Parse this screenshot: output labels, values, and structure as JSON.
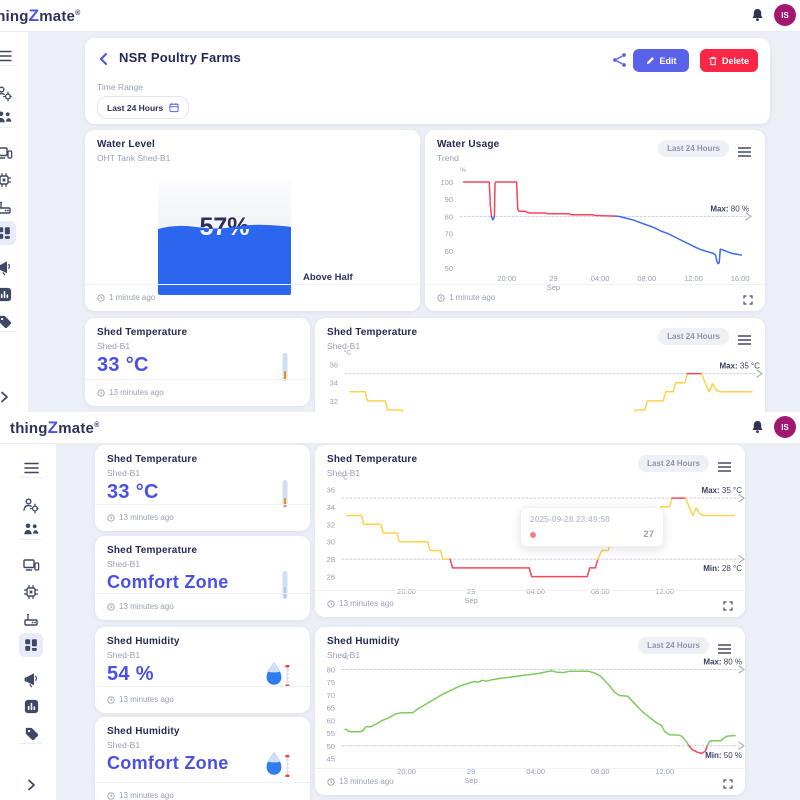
{
  "brand": {
    "prefix": "thing",
    "accent": "Z",
    "suffix": "mate",
    "registered": "®"
  },
  "header": {
    "avatar": "IS",
    "bell_icon": "bell-icon"
  },
  "sidebar": {
    "items": [
      {
        "icon": "menu"
      },
      {
        "icon": "divider"
      },
      {
        "icon": "user-gear"
      },
      {
        "icon": "users"
      },
      {
        "icon": "divider"
      },
      {
        "icon": "devices"
      },
      {
        "icon": "chip"
      },
      {
        "icon": "gateway"
      },
      {
        "icon": "dashboard",
        "active": true
      },
      {
        "icon": "megaphone"
      },
      {
        "icon": "reports"
      },
      {
        "icon": "tags"
      },
      {
        "icon": "divider"
      },
      {
        "icon": "chevron-right",
        "bottom": true
      }
    ]
  },
  "page": {
    "title": "NSR Poultry Farms",
    "edit": "Edit",
    "delete": "Delete",
    "time_range_label": "Time Range",
    "time_range_value": "Last 24 Hours"
  },
  "cards": {
    "water_level": {
      "title": "Water Level",
      "subtitle": "OHT Tank Shed-B1",
      "value": "57%",
      "percent": 57,
      "status": "Above Half",
      "updated": "1 minute ago"
    },
    "water_usage": {
      "title": "Water Usage",
      "subtitle": "Trend",
      "range": "Last 24 Hours",
      "updated": "1 minute ago"
    },
    "temp_value": {
      "title": "Shed Temperature",
      "subtitle": "Shed-B1",
      "value": "33 °C",
      "updated": "13 minutes ago"
    },
    "temp_chart": {
      "title": "Shed Temperature",
      "subtitle": "Shed-B1",
      "range": "Last 24 Hours",
      "updated": "13 minutes ago"
    },
    "temp_status": {
      "title": "Shed Temperature",
      "subtitle": "Shed-B1",
      "value": "Comfort Zone",
      "updated": "13 minutes ago"
    },
    "humidity_value": {
      "title": "Shed Humidity",
      "subtitle": "Shed-B1",
      "value": "54 %",
      "updated": "13 minutes ago"
    },
    "humidity_chart": {
      "title": "Shed Humidity",
      "subtitle": "Shed-B1",
      "range": "Last 24 Hours",
      "updated": "13 minutes ago"
    },
    "humidity_status": {
      "title": "Shed Humidity",
      "subtitle": "Shed-B1",
      "value": "Comfort Zone",
      "updated": "13 minutes ago"
    }
  },
  "tooltip": {
    "timestamp": "2025-09-28 23:49:50",
    "value": "27"
  },
  "chart_data": [
    {
      "type": "line",
      "title": "Water Usage",
      "subtitle": "Trend",
      "range_label": "Last 24 Hours",
      "unit": "%",
      "ylim": [
        50,
        100
      ],
      "xlim": [
        0,
        24.5
      ],
      "yticks": [
        100,
        90,
        80,
        70,
        60,
        50
      ],
      "xticks": [
        {
          "x": 4,
          "label": "20:00"
        },
        {
          "x": 8,
          "label": "29",
          "sub": "Sep"
        },
        {
          "x": 12,
          "label": "04:00"
        },
        {
          "x": 16,
          "label": "08:00"
        },
        {
          "x": 20,
          "label": "12:00"
        },
        {
          "x": 24,
          "label": "16:00"
        }
      ],
      "max_line": {
        "prefix": "Max:",
        "value": 80,
        "text": "80 %"
      },
      "min_line": null,
      "series": [
        {
          "color": "#f6465d",
          "points": [
            [
              0.3,
              100
            ],
            [
              2.5,
              100
            ],
            [
              2.6,
              86
            ],
            [
              2.7,
              80
            ]
          ]
        },
        {
          "color": "#3e6be8",
          "points": [
            [
              2.7,
              80
            ],
            [
              2.8,
              78
            ],
            [
              2.9,
              79
            ],
            [
              2.95,
              80
            ]
          ]
        },
        {
          "color": "#f6465d",
          "points": [
            [
              2.95,
              80
            ],
            [
              3.0,
              99
            ],
            [
              3.05,
              100
            ],
            [
              4.85,
              100
            ],
            [
              4.95,
              84
            ],
            [
              5.05,
              83
            ],
            [
              5.6,
              83
            ],
            [
              5.7,
              82.5
            ],
            [
              6.0,
              82
            ],
            [
              7.4,
              82
            ],
            [
              7.5,
              81.5
            ],
            [
              9.4,
              81.5
            ],
            [
              9.5,
              81
            ],
            [
              11.4,
              81
            ],
            [
              11.5,
              80.6
            ],
            [
              13.3,
              80.2
            ]
          ]
        },
        {
          "color": "#3e6be8",
          "points": [
            [
              13.3,
              80.2
            ],
            [
              13.6,
              80
            ],
            [
              14.2,
              79
            ],
            [
              14.8,
              78
            ],
            [
              15.4,
              76.5
            ],
            [
              16.0,
              75
            ],
            [
              16.6,
              73.5
            ],
            [
              17.2,
              71.5
            ],
            [
              17.8,
              70
            ],
            [
              18.4,
              68
            ],
            [
              19.0,
              66
            ],
            [
              19.6,
              64
            ],
            [
              20.2,
              62
            ],
            [
              20.7,
              60.5
            ],
            [
              21.2,
              59.5
            ],
            [
              21.7,
              58.5
            ],
            [
              21.9,
              57.5
            ],
            [
              22.0,
              54
            ],
            [
              22.1,
              52.5
            ],
            [
              22.2,
              53
            ],
            [
              22.3,
              61
            ],
            [
              22.5,
              60.5
            ],
            [
              22.9,
              59.5
            ],
            [
              23.3,
              58.5
            ],
            [
              23.7,
              58
            ],
            [
              24.1,
              57.5
            ]
          ]
        }
      ]
    },
    {
      "type": "line",
      "title": "Shed Temperature",
      "subtitle": "Shed-B1",
      "range_label": "Last 24 Hours",
      "unit": "°C",
      "ylim": [
        25.5,
        36.5
      ],
      "xlim": [
        0,
        24.6
      ],
      "yticks": [
        36,
        34,
        32,
        30,
        28,
        26
      ],
      "xticks": [
        {
          "x": 4,
          "label": "20:00"
        },
        {
          "x": 8,
          "label": "29",
          "sub": "Sep"
        },
        {
          "x": 12,
          "label": "04:00"
        },
        {
          "x": 16,
          "label": "08:00"
        },
        {
          "x": 20,
          "label": "12:00"
        }
      ],
      "max_line": {
        "prefix": "Max:",
        "value": 35,
        "text": "35 °C"
      },
      "min_line": {
        "prefix": "Min:",
        "value": 28,
        "text": "28 °C"
      },
      "series": [
        {
          "color": "#ffd24d",
          "points": [
            [
              0.3,
              33
            ],
            [
              1.2,
              33
            ],
            [
              1.35,
              32
            ],
            [
              2.4,
              32
            ],
            [
              2.55,
              31
            ],
            [
              3.4,
              31
            ],
            [
              3.55,
              30
            ],
            [
              5.3,
              30
            ],
            [
              5.45,
              29
            ],
            [
              6.1,
              29
            ],
            [
              6.25,
              28
            ],
            [
              6.7,
              28
            ]
          ]
        },
        {
          "color": "#f6465d",
          "points": [
            [
              6.7,
              28
            ],
            [
              6.85,
              27
            ],
            [
              11.6,
              27
            ],
            [
              11.75,
              26
            ],
            [
              15.2,
              26
            ],
            [
              15.35,
              27
            ],
            [
              15.7,
              27
            ],
            [
              15.85,
              28
            ]
          ]
        },
        {
          "color": "#ffd24d",
          "points": [
            [
              15.85,
              28
            ],
            [
              16.1,
              29
            ],
            [
              16.5,
              29
            ],
            [
              16.65,
              30
            ],
            [
              17.2,
              30
            ],
            [
              17.35,
              31
            ],
            [
              17.9,
              31
            ],
            [
              18.05,
              32
            ],
            [
              19.0,
              32
            ],
            [
              19.15,
              33
            ],
            [
              19.6,
              33
            ],
            [
              19.75,
              34
            ],
            [
              20.3,
              34
            ],
            [
              20.45,
              35
            ]
          ]
        },
        {
          "color": "#f6465d",
          "points": [
            [
              20.45,
              35
            ],
            [
              21.3,
              35
            ]
          ]
        },
        {
          "color": "#ffd24d",
          "points": [
            [
              21.3,
              35
            ],
            [
              21.5,
              34
            ],
            [
              21.75,
              33
            ],
            [
              21.95,
              33.9
            ],
            [
              22.15,
              33.2
            ],
            [
              22.4,
              33
            ],
            [
              24.3,
              33
            ]
          ]
        }
      ]
    },
    {
      "type": "line",
      "title": "Shed Humidity",
      "subtitle": "Shed-B1",
      "range_label": "Last 24 Hours",
      "unit": "%",
      "ylim": [
        44,
        81
      ],
      "xlim": [
        0,
        24.6
      ],
      "yticks": [
        80,
        75,
        70,
        65,
        60,
        55,
        50,
        45
      ],
      "xticks": [
        {
          "x": 4,
          "label": "20:00"
        },
        {
          "x": 8,
          "label": "29",
          "sub": "Sep"
        },
        {
          "x": 12,
          "label": "04:00"
        },
        {
          "x": 16,
          "label": "08:00"
        },
        {
          "x": 20,
          "label": "12:00"
        }
      ],
      "max_line": {
        "prefix": "Max:",
        "value": 80,
        "text": "80 %"
      },
      "min_line": {
        "prefix": "Min:",
        "value": 50,
        "text": "50 %"
      },
      "series": [
        {
          "color": "#7ecb5c",
          "points": [
            [
              0.2,
              56.5
            ],
            [
              0.5,
              55.5
            ],
            [
              1.1,
              55.5
            ],
            [
              1.3,
              56
            ],
            [
              1.5,
              57.5
            ],
            [
              1.8,
              57.5
            ],
            [
              2.1,
              58.5
            ],
            [
              2.5,
              60
            ],
            [
              2.9,
              61
            ],
            [
              3.3,
              62.5
            ],
            [
              3.7,
              63
            ],
            [
              4.4,
              63
            ],
            [
              4.7,
              64.5
            ],
            [
              5.1,
              66
            ],
            [
              5.5,
              67.5
            ],
            [
              5.9,
              69
            ],
            [
              6.3,
              70.5
            ],
            [
              6.8,
              72
            ],
            [
              7.3,
              73.5
            ],
            [
              7.8,
              74.5
            ],
            [
              8.2,
              75.3
            ],
            [
              8.45,
              75
            ],
            [
              8.7,
              75.8
            ],
            [
              8.95,
              75.4
            ],
            [
              9.3,
              76
            ],
            [
              9.8,
              76.5
            ],
            [
              10.4,
              77
            ],
            [
              11.0,
              77.5
            ],
            [
              11.6,
              78
            ],
            [
              12.2,
              78.5
            ],
            [
              12.7,
              79.2
            ],
            [
              13.0,
              79.5
            ],
            [
              13.3,
              79
            ],
            [
              13.7,
              78.8
            ],
            [
              14.1,
              79.3
            ],
            [
              15.3,
              79.3
            ],
            [
              15.7,
              78.5
            ],
            [
              16.0,
              77.5
            ],
            [
              16.3,
              75.5
            ],
            [
              16.6,
              73.5
            ],
            [
              16.9,
              71
            ],
            [
              17.2,
              69.8
            ],
            [
              17.7,
              69.5
            ],
            [
              18.0,
              67.5
            ],
            [
              18.3,
              65.5
            ],
            [
              18.6,
              63.5
            ],
            [
              18.9,
              62
            ],
            [
              19.2,
              60.5
            ],
            [
              19.5,
              59
            ],
            [
              19.8,
              58
            ],
            [
              20.0,
              55.5
            ],
            [
              20.3,
              54.3
            ],
            [
              20.9,
              54.2
            ],
            [
              21.1,
              53.5
            ],
            [
              21.3,
              52
            ],
            [
              21.5,
              50
            ]
          ]
        },
        {
          "color": "#f6465d",
          "points": [
            [
              21.5,
              50
            ],
            [
              21.7,
              48.5
            ],
            [
              22.0,
              47.5
            ],
            [
              22.3,
              47
            ],
            [
              22.5,
              47.8
            ],
            [
              22.65,
              50
            ]
          ]
        },
        {
          "color": "#7ecb5c",
          "points": [
            [
              22.65,
              50
            ],
            [
              22.75,
              51.5
            ],
            [
              22.85,
              52
            ],
            [
              23.5,
              52
            ],
            [
              23.65,
              53
            ],
            [
              23.9,
              53.8
            ],
            [
              24.35,
              54
            ]
          ]
        }
      ]
    }
  ]
}
